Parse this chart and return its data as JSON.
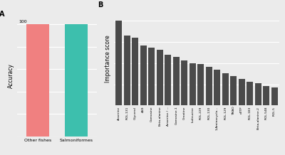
{
  "panel_a": {
    "categories": [
      "Other fishes",
      "Salmoniformes"
    ],
    "values": [
      100,
      100
    ],
    "colors": [
      "#F08080",
      "#3DBFAD"
    ],
    "ylabel": "Accuracy",
    "y100_label": "100"
  },
  "panel_b": {
    "categories": [
      "Anserine",
      "ROL.131",
      "Glycerol",
      "AS9",
      "Carnosine",
      "Beta-alanine",
      "Anserine / ...",
      "Carnosine.1",
      "Creatine",
      "Isoleucine",
      "ROL.229",
      "ROL.130",
      "1-Aminocyclo...",
      "ROL.129",
      "TMAO",
      "dTTP",
      "ROL.183",
      "Beta-alanine.2",
      "ROL.548",
      "ROL.5"
    ],
    "values": [
      1.0,
      0.83,
      0.8,
      0.71,
      0.68,
      0.66,
      0.6,
      0.57,
      0.53,
      0.5,
      0.49,
      0.46,
      0.42,
      0.38,
      0.35,
      0.31,
      0.28,
      0.26,
      0.23,
      0.21
    ],
    "bar_color": "#4A4A4A",
    "ylabel": "Importance score"
  },
  "background_color": "#EBEBEB",
  "panel_label_fontsize": 7,
  "tick_fontsize": 4.5,
  "axis_label_fontsize": 5.5
}
